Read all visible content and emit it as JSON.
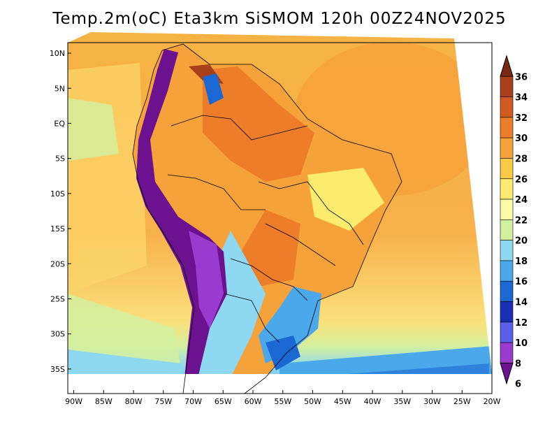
{
  "title": "Temp.2m(oC) Eta3km SiSMOM 120h 00Z24NOV2025",
  "map": {
    "variable": "Temp.2m(oC)",
    "model": "Eta3km SiSMOM",
    "forecast": "120h",
    "init": "00Z24NOV2025",
    "lon_range": [
      -91,
      -20
    ],
    "lat_range": [
      -38.5,
      11.5
    ],
    "lon_ticks": [
      {
        "value": -90,
        "label": "90W"
      },
      {
        "value": -85,
        "label": "85W"
      },
      {
        "value": -80,
        "label": "80W"
      },
      {
        "value": -75,
        "label": "75W"
      },
      {
        "value": -70,
        "label": "70W"
      },
      {
        "value": -65,
        "label": "65W"
      },
      {
        "value": -60,
        "label": "60W"
      },
      {
        "value": -55,
        "label": "55W"
      },
      {
        "value": -50,
        "label": "50W"
      },
      {
        "value": -45,
        "label": "45W"
      },
      {
        "value": -40,
        "label": "40W"
      },
      {
        "value": -35,
        "label": "35W"
      },
      {
        "value": -30,
        "label": "30W"
      },
      {
        "value": -25,
        "label": "25W"
      },
      {
        "value": -20,
        "label": "20W"
      }
    ],
    "lat_ticks": [
      {
        "value": 10,
        "label": "10N"
      },
      {
        "value": 5,
        "label": "5N"
      },
      {
        "value": 0,
        "label": "EQ"
      },
      {
        "value": -5,
        "label": "5S"
      },
      {
        "value": -10,
        "label": "10S"
      },
      {
        "value": -15,
        "label": "15S"
      },
      {
        "value": -20,
        "label": "20S"
      },
      {
        "value": -25,
        "label": "25S"
      },
      {
        "value": -30,
        "label": "30S"
      },
      {
        "value": -35,
        "label": "35S"
      }
    ]
  },
  "colorbar": {
    "levels": [
      "36",
      "34",
      "32",
      "30",
      "28",
      "26",
      "24",
      "22",
      "20",
      "18",
      "16",
      "14",
      "12",
      "10",
      "8",
      "6"
    ],
    "colors": [
      "#7a2a12",
      "#a8401a",
      "#d2591f",
      "#ee7d2a",
      "#f6a23a",
      "#fac945",
      "#fbeb6e",
      "#fbfaa6",
      "#d3f0a0",
      "#8ed8f2",
      "#4ba8ea",
      "#1c68d2",
      "#1a2fb6",
      "#5b5ee8",
      "#9a3bd0",
      "#6c1190"
    ]
  }
}
